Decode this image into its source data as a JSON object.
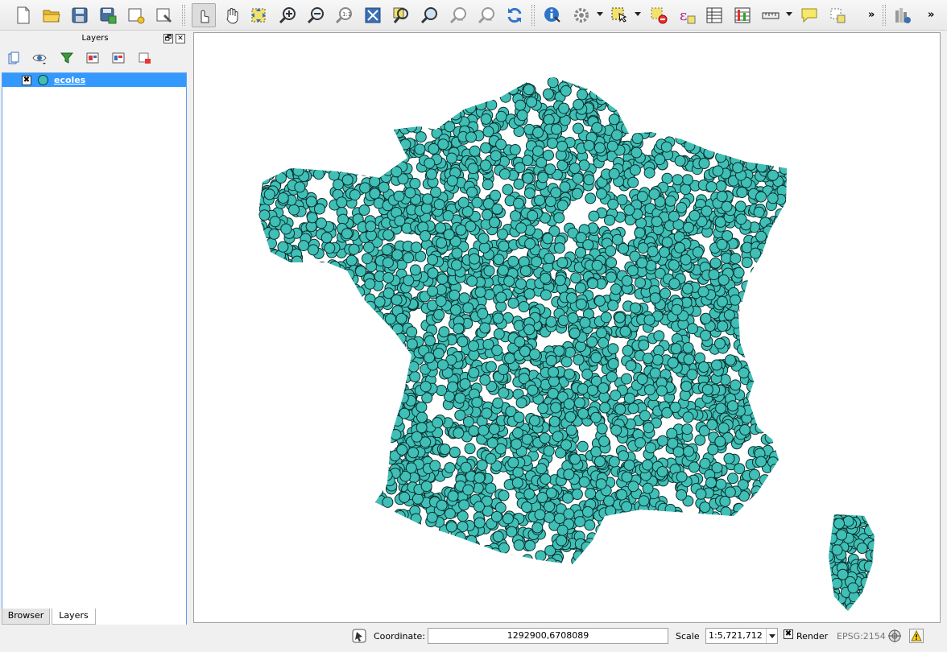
{
  "toolbar": {
    "tools": [
      {
        "name": "new-project-icon"
      },
      {
        "name": "open-project-icon"
      },
      {
        "name": "save-project-icon"
      },
      {
        "name": "save-as-icon"
      },
      {
        "name": "new-print-composer-icon"
      },
      {
        "name": "composer-manager-icon"
      },
      {
        "name": "touch-pan-icon"
      },
      {
        "name": "pan-hand-icon"
      },
      {
        "name": "pan-to-selection-icon"
      },
      {
        "name": "zoom-in-icon"
      },
      {
        "name": "zoom-out-icon"
      },
      {
        "name": "zoom-native-icon"
      },
      {
        "name": "zoom-full-icon"
      },
      {
        "name": "zoom-to-selection-icon"
      },
      {
        "name": "zoom-to-layer-icon"
      },
      {
        "name": "zoom-last-icon"
      },
      {
        "name": "zoom-next-icon"
      },
      {
        "name": "refresh-icon"
      },
      {
        "name": "identify-icon"
      },
      {
        "name": "action-gear-icon"
      },
      {
        "name": "select-features-icon"
      },
      {
        "name": "deselect-icon"
      },
      {
        "name": "expression-select-icon"
      },
      {
        "name": "attribute-table-icon"
      },
      {
        "name": "statistics-icon"
      },
      {
        "name": "measure-icon"
      },
      {
        "name": "map-tips-icon"
      },
      {
        "name": "text-annotation-icon"
      },
      {
        "name": "plugins-icon"
      }
    ],
    "overflow_label": "»"
  },
  "layers_panel": {
    "title": "Layers",
    "float_label": "🗗",
    "close_label": "✕",
    "layers": [
      {
        "name": "ecoles",
        "visible": true,
        "symbol_fill": "#3fbfb6",
        "symbol_stroke": "#0b3b3a"
      }
    ],
    "tabs": [
      {
        "label": "Browser",
        "active": false
      },
      {
        "label": "Layers",
        "active": true
      }
    ]
  },
  "map": {
    "point_fill": "#3fbfb6",
    "point_stroke": "#0b2e2d"
  },
  "status": {
    "coordinate_label": "Coordinate:",
    "coordinate_value": "1292900,6708089",
    "scale_label": "Scale",
    "scale_value": "1:5,721,712",
    "render_label": "Render",
    "render_checked": true,
    "crs_label": "EPSG:2154"
  }
}
